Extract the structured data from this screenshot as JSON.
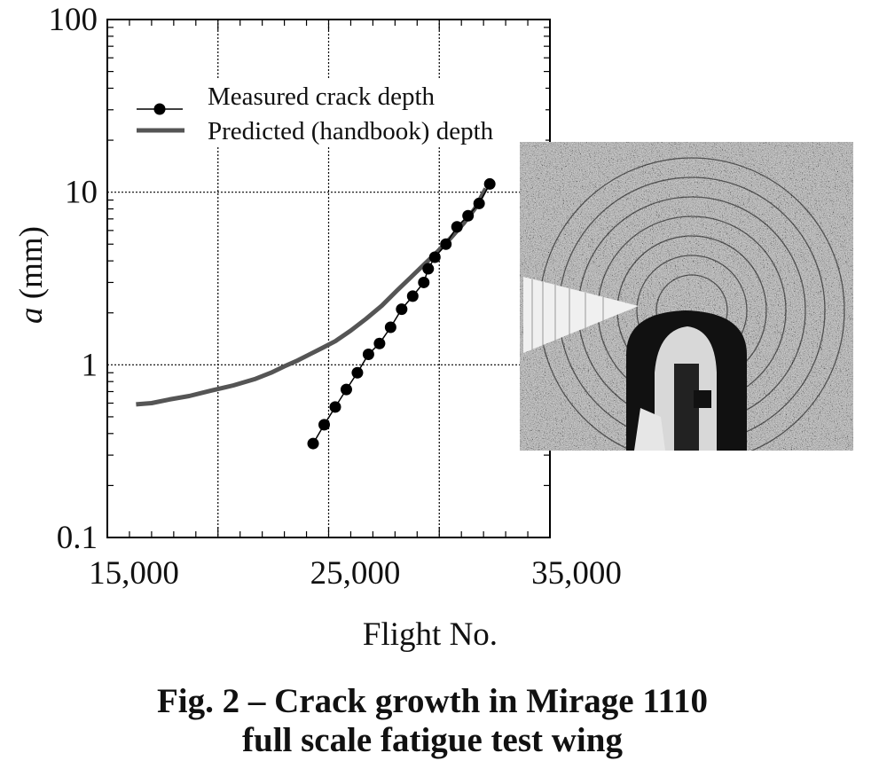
{
  "chart_data": {
    "type": "line",
    "xlabel": "Flight No.",
    "ylabel_italic": "a",
    "ylabel_rest": " (mm)",
    "xlim": [
      15000,
      35000
    ],
    "ylim": [
      0.1,
      100
    ],
    "y_scale": "log",
    "grid": true,
    "x_ticks": [
      15000,
      25000,
      35000
    ],
    "x_tick_labels": [
      "15,000",
      "25,000",
      "35,000"
    ],
    "x_gridlines": [
      20000,
      25000,
      30000
    ],
    "y_ticks": [
      0.1,
      1,
      10,
      100
    ],
    "y_tick_labels": [
      "0.1",
      "1",
      "10",
      "100"
    ],
    "legend_position": "top-left",
    "series": [
      {
        "name": "Measured crack depth",
        "marker": "circle",
        "line_color": "#000000",
        "x": [
          24300,
          24800,
          25300,
          25800,
          26300,
          26800,
          27300,
          27800,
          28300,
          28800,
          29300,
          29500,
          29800,
          30300,
          30800,
          31300,
          31800
        ],
        "y": [
          0.35,
          0.45,
          0.57,
          0.72,
          0.9,
          1.15,
          1.33,
          1.65,
          2.1,
          2.5,
          3.0,
          3.6,
          4.2,
          5.0,
          6.3,
          7.3,
          8.6
        ]
      },
      {
        "name": "Predicted (handbook) depth",
        "marker": "none",
        "line_color": "#555555",
        "x": [
          16300,
          17000,
          17800,
          18700,
          19700,
          20700,
          21700,
          22400,
          23000,
          23600,
          24200,
          24700,
          25300,
          26000,
          26700,
          27400,
          28100,
          28700,
          29300,
          29900,
          30500,
          31100,
          31600,
          32100
        ],
        "y": [
          0.59,
          0.6,
          0.63,
          0.66,
          0.71,
          0.76,
          0.83,
          0.9,
          0.98,
          1.06,
          1.16,
          1.25,
          1.37,
          1.58,
          1.85,
          2.2,
          2.7,
          3.2,
          3.8,
          4.5,
          5.4,
          6.6,
          8.0,
          10.5
        ]
      }
    ]
  },
  "caption": {
    "line1": "Fig. 2 – Crack growth in Mirage 1110",
    "line2": "full scale fatigue test wing"
  }
}
